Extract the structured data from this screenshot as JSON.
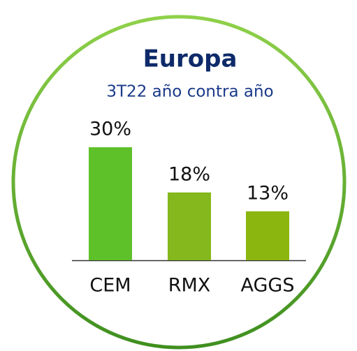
{
  "chart_data": {
    "type": "bar",
    "title": "Europa",
    "subtitle": "3T22 año contra año",
    "categories": [
      "CEM",
      "RMX",
      "AGGS"
    ],
    "values": [
      30,
      18,
      13
    ],
    "value_labels": [
      "30%",
      "18%",
      "13%"
    ],
    "colors": [
      "#5fc12a",
      "#84b81c",
      "#8bb50f"
    ]
  }
}
